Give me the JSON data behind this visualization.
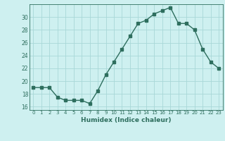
{
  "x": [
    0,
    1,
    2,
    3,
    4,
    5,
    6,
    7,
    8,
    9,
    10,
    11,
    12,
    13,
    14,
    15,
    16,
    17,
    18,
    19,
    20,
    21,
    22,
    23
  ],
  "y": [
    19,
    19,
    19,
    17.5,
    17,
    17,
    17,
    16.5,
    18.5,
    21,
    23,
    25,
    27,
    29,
    29.5,
    30.5,
    31,
    31.5,
    29,
    29,
    28,
    25,
    23,
    22
  ],
  "xlabel": "Humidex (Indice chaleur)",
  "ylim": [
    15.5,
    32
  ],
  "xlim": [
    -0.5,
    23.5
  ],
  "yticks": [
    16,
    18,
    20,
    22,
    24,
    26,
    28,
    30
  ],
  "xtick_labels": [
    "0",
    "1",
    "2",
    "3",
    "4",
    "5",
    "6",
    "7",
    "8",
    "9",
    "10",
    "11",
    "12",
    "13",
    "14",
    "15",
    "16",
    "17",
    "18",
    "19",
    "20",
    "21",
    "22",
    "23"
  ],
  "line_color": "#2e6e5e",
  "bg_color": "#cef0f0",
  "grid_color": "#a8d8d8",
  "marker": "s",
  "markersize": 2.5,
  "linewidth": 1.0
}
